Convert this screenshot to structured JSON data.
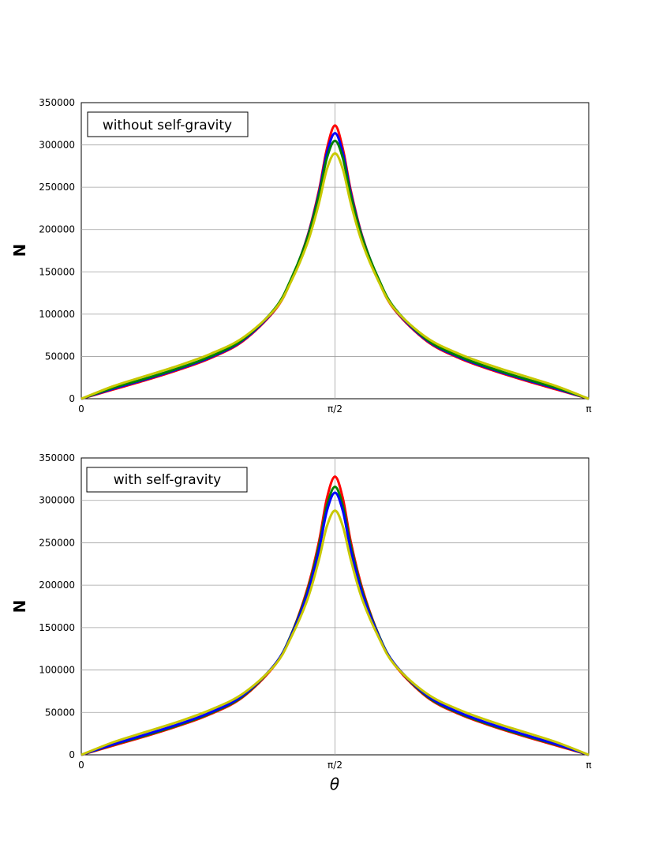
{
  "chart_data": [
    {
      "type": "line",
      "annotation": "without self-gravity",
      "ylabel": "N",
      "xlabel": "",
      "xlim": [
        0,
        3.14159
      ],
      "ylim": [
        0,
        350000
      ],
      "yticks": [
        0,
        50000,
        100000,
        150000,
        200000,
        250000,
        300000,
        350000
      ],
      "xticks": [
        {
          "value": 0,
          "label": "0"
        },
        {
          "value": 1.5708,
          "label": "π/2"
        },
        {
          "value": 3.14159,
          "label": "π"
        }
      ],
      "grid": true,
      "series": [
        {
          "color": "#ff0000",
          "x": [
            0,
            0.2,
            0.4,
            0.6,
            0.8,
            1.0,
            1.2,
            1.3,
            1.4,
            1.47,
            1.52,
            1.5708,
            1.62,
            1.67,
            1.74,
            1.84,
            1.94,
            2.14,
            2.34,
            2.54,
            2.74,
            2.94,
            3.14159
          ],
          "y": [
            0,
            11000,
            22000,
            34000,
            48000,
            68000,
            105000,
            140000,
            192000,
            245000,
            295000,
            323000,
            295000,
            245000,
            192000,
            140000,
            105000,
            68000,
            48000,
            34000,
            22000,
            11000,
            0
          ]
        },
        {
          "color": "#0000ff",
          "x": [
            0,
            0.2,
            0.4,
            0.6,
            0.8,
            1.0,
            1.2,
            1.3,
            1.4,
            1.47,
            1.52,
            1.5708,
            1.62,
            1.67,
            1.74,
            1.84,
            1.94,
            2.14,
            2.34,
            2.54,
            2.74,
            2.94,
            3.14159
          ],
          "y": [
            0,
            12000,
            23000,
            35000,
            49000,
            69000,
            106000,
            141000,
            191000,
            242000,
            290000,
            314000,
            290000,
            242000,
            191000,
            141000,
            106000,
            69000,
            49000,
            35000,
            23000,
            12000,
            0
          ]
        },
        {
          "color": "#008000",
          "x": [
            0,
            0.2,
            0.4,
            0.6,
            0.8,
            1.0,
            1.2,
            1.3,
            1.4,
            1.47,
            1.52,
            1.5708,
            1.62,
            1.67,
            1.74,
            1.84,
            1.94,
            2.14,
            2.34,
            2.54,
            2.74,
            2.94,
            3.14159
          ],
          "y": [
            0,
            13000,
            24000,
            36000,
            50000,
            70000,
            107000,
            142000,
            190000,
            239000,
            284000,
            305000,
            284000,
            239000,
            190000,
            142000,
            107000,
            70000,
            50000,
            36000,
            24000,
            13000,
            0
          ]
        },
        {
          "color": "#c8c800",
          "x": [
            0,
            0.2,
            0.4,
            0.6,
            0.8,
            1.0,
            1.2,
            1.3,
            1.4,
            1.47,
            1.52,
            1.5708,
            1.62,
            1.67,
            1.74,
            1.84,
            1.94,
            2.14,
            2.34,
            2.54,
            2.74,
            2.94,
            3.14159
          ],
          "y": [
            0,
            15000,
            27000,
            39000,
            53000,
            72000,
            106000,
            139000,
            184000,
            230000,
            271000,
            290000,
            271000,
            230000,
            184000,
            139000,
            106000,
            72000,
            53000,
            39000,
            27000,
            15000,
            0
          ]
        }
      ]
    },
    {
      "type": "line",
      "annotation": "with self-gravity",
      "ylabel": "N",
      "xlabel": "θ",
      "xlim": [
        0,
        3.14159
      ],
      "ylim": [
        0,
        350000
      ],
      "yticks": [
        0,
        50000,
        100000,
        150000,
        200000,
        250000,
        300000,
        350000
      ],
      "xticks": [
        {
          "value": 0,
          "label": "0"
        },
        {
          "value": 1.5708,
          "label": "π/2"
        },
        {
          "value": 3.14159,
          "label": "π"
        }
      ],
      "grid": true,
      "series": [
        {
          "color": "#ff0000",
          "x": [
            0,
            0.2,
            0.4,
            0.6,
            0.8,
            1.0,
            1.2,
            1.3,
            1.4,
            1.47,
            1.52,
            1.5708,
            1.62,
            1.67,
            1.74,
            1.84,
            1.94,
            2.14,
            2.34,
            2.54,
            2.74,
            2.94,
            3.14159
          ],
          "y": [
            0,
            11000,
            22000,
            34000,
            48000,
            68000,
            106000,
            142000,
            196000,
            250000,
            302000,
            328000,
            302000,
            250000,
            196000,
            142000,
            106000,
            68000,
            48000,
            34000,
            22000,
            11000,
            0
          ]
        },
        {
          "color": "#008000",
          "x": [
            0,
            0.2,
            0.4,
            0.6,
            0.8,
            1.0,
            1.2,
            1.3,
            1.4,
            1.47,
            1.52,
            1.5708,
            1.62,
            1.67,
            1.74,
            1.84,
            1.94,
            2.14,
            2.34,
            2.54,
            2.74,
            2.94,
            3.14159
          ],
          "y": [
            0,
            12000,
            23000,
            35000,
            49000,
            69000,
            107000,
            142000,
            193000,
            245000,
            293000,
            316000,
            293000,
            245000,
            193000,
            142000,
            107000,
            69000,
            49000,
            35000,
            23000,
            12000,
            0
          ]
        },
        {
          "color": "#0000ff",
          "x": [
            0,
            0.2,
            0.4,
            0.6,
            0.8,
            1.0,
            1.2,
            1.3,
            1.4,
            1.47,
            1.52,
            1.5708,
            1.62,
            1.67,
            1.74,
            1.84,
            1.94,
            2.14,
            2.34,
            2.54,
            2.74,
            2.94,
            3.14159
          ],
          "y": [
            0,
            12500,
            24000,
            36000,
            50000,
            70000,
            107000,
            141000,
            190000,
            240000,
            287000,
            309000,
            287000,
            240000,
            190000,
            141000,
            107000,
            70000,
            50000,
            36000,
            24000,
            12500,
            0
          ]
        },
        {
          "color": "#c8c800",
          "x": [
            0,
            0.2,
            0.4,
            0.6,
            0.8,
            1.0,
            1.2,
            1.3,
            1.4,
            1.47,
            1.52,
            1.5708,
            1.62,
            1.67,
            1.74,
            1.84,
            1.94,
            2.14,
            2.34,
            2.54,
            2.74,
            2.94,
            3.14159
          ],
          "y": [
            0,
            15000,
            27000,
            39000,
            53000,
            72000,
            106000,
            139000,
            183000,
            229000,
            269000,
            288000,
            269000,
            229000,
            183000,
            139000,
            106000,
            72000,
            53000,
            39000,
            27000,
            15000,
            0
          ]
        }
      ]
    }
  ]
}
